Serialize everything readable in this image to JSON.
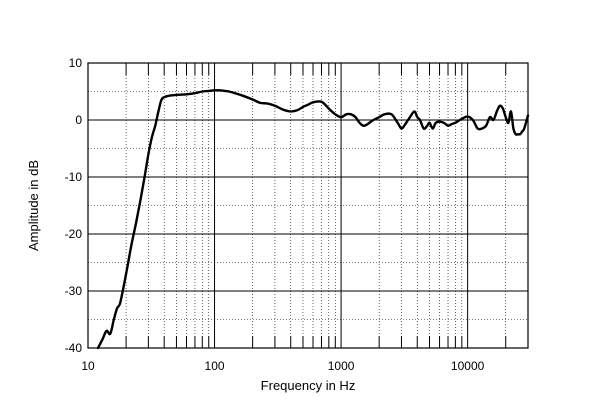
{
  "chart_data": {
    "type": "line",
    "xlabel": "Frequency  in Hz",
    "ylabel": "Amplitude in dB",
    "x_scale": "log",
    "xlim": [
      10,
      30000
    ],
    "ylim": [
      -40,
      10
    ],
    "x_ticks": [
      10,
      100,
      1000,
      10000
    ],
    "x_tick_labels": [
      "10",
      "100",
      "1000",
      "10000"
    ],
    "y_ticks": [
      10,
      0,
      -10,
      -20,
      -30,
      -40
    ],
    "y_tick_labels": [
      "10",
      "0",
      "-10",
      "-20",
      "-30",
      "-40"
    ],
    "grid": true,
    "colors": {
      "line": "#000000",
      "grid": "#000000",
      "background": "#ffffff"
    },
    "series": [
      {
        "x": [
          12,
          13,
          14,
          15,
          16,
          17,
          18,
          20,
          22,
          24,
          26,
          28,
          30,
          32,
          34,
          36,
          38,
          40,
          45,
          50,
          60,
          70,
          80,
          90,
          100,
          110,
          120,
          130,
          150,
          170,
          200,
          230,
          260,
          300,
          350,
          400,
          450,
          500,
          550,
          600,
          700,
          800,
          900,
          1000,
          1100,
          1200,
          1300,
          1400,
          1500,
          1600,
          1800,
          2000,
          2200,
          2500,
          2800,
          3000,
          3200,
          3500,
          3800,
          4000,
          4200,
          4500,
          4800,
          5000,
          5300,
          5600,
          6000,
          6500,
          7000,
          7500,
          8000,
          9000,
          10000,
          11000,
          12000,
          13000,
          14000,
          15000,
          16000,
          17000,
          18000,
          19000,
          20000,
          21000,
          22000,
          23000,
          24000,
          25000,
          26000,
          27000,
          28000,
          30000
        ],
        "y": [
          -40,
          -38.5,
          -37,
          -37.5,
          -35,
          -33,
          -32,
          -27,
          -22,
          -18,
          -14,
          -10,
          -6,
          -3,
          -1,
          1.5,
          3.5,
          4,
          4.3,
          4.4,
          4.5,
          4.7,
          5,
          5.1,
          5.2,
          5.2,
          5.1,
          5,
          4.6,
          4.2,
          3.6,
          3,
          2.9,
          2.5,
          1.8,
          1.5,
          1.7,
          2.3,
          2.7,
          3.1,
          3.2,
          2,
          1,
          0.5,
          1,
          1,
          0.5,
          -0.5,
          -1,
          -0.8,
          0,
          0.5,
          1,
          1,
          -0.5,
          -1.5,
          -0.8,
          0.5,
          1.5,
          0.5,
          0,
          -1.5,
          -1,
          -0.5,
          -1.5,
          -0.5,
          -0.3,
          -0.5,
          -1,
          -0.7,
          -0.5,
          0.2,
          0.6,
          0,
          -1.5,
          -1.5,
          -1,
          0.5,
          0,
          1.5,
          2.5,
          2,
          0.5,
          -0.5,
          1.5,
          -1.5,
          -2.5,
          -2.5,
          -2.5,
          -2,
          -1.5,
          0.8
        ]
      }
    ]
  }
}
